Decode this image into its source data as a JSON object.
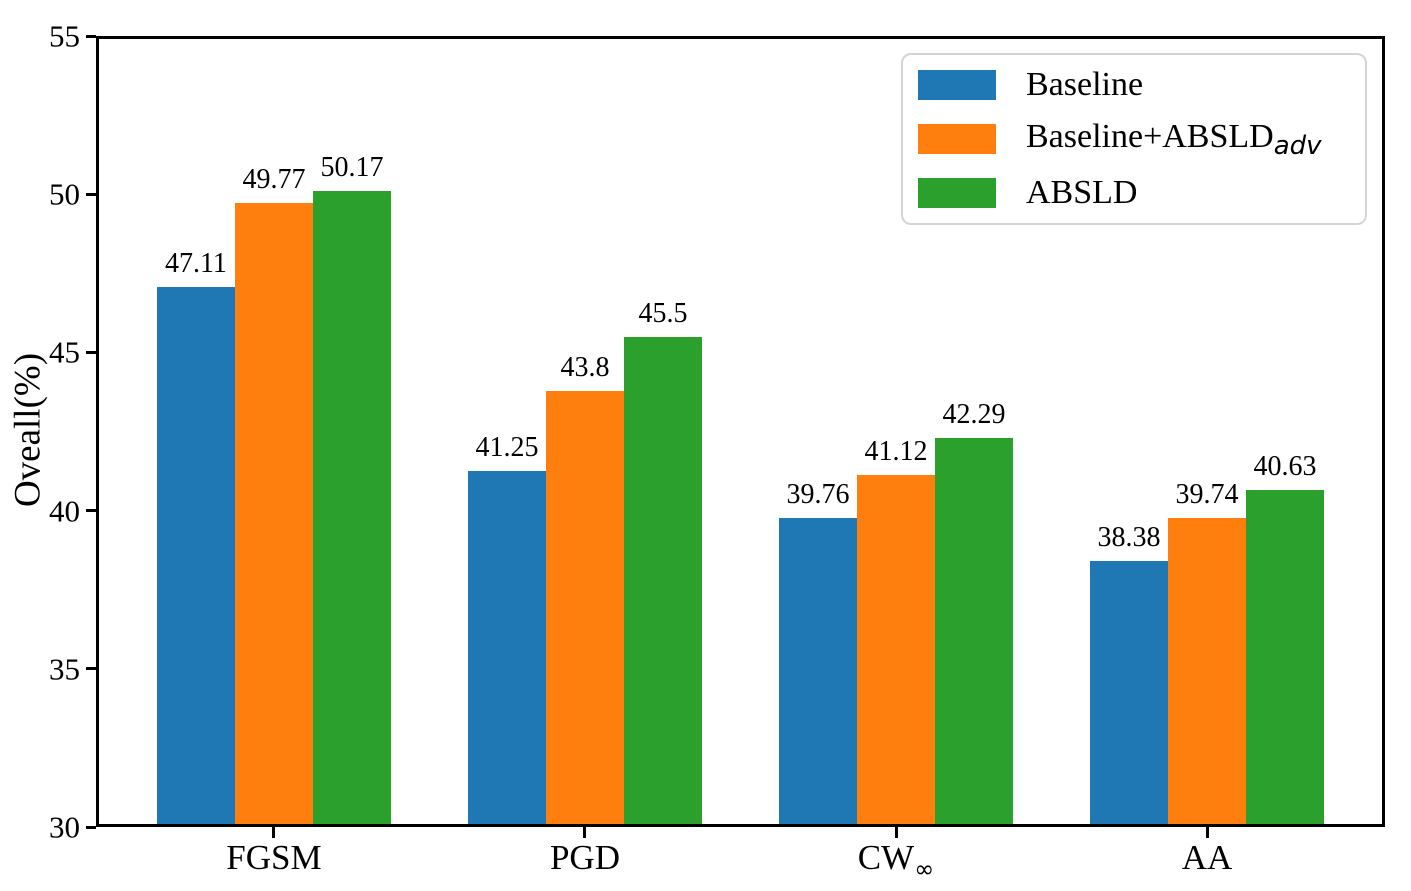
{
  "chart_data": {
    "type": "bar",
    "title": "",
    "xlabel": "",
    "ylabel": "Oveall(%)",
    "ylim": [
      30,
      55
    ],
    "yticks": [
      30,
      35,
      40,
      45,
      50,
      55
    ],
    "grid": false,
    "legend_position": "upper right",
    "background_color": "#ffffff",
    "axis_color": "#000000",
    "legend_border_color": "#d5d5d5",
    "categories": [
      {
        "text": "FGSM",
        "sub": ""
      },
      {
        "text": "PGD",
        "sub": ""
      },
      {
        "text": "CW",
        "sub": "∞"
      },
      {
        "text": "AA",
        "sub": ""
      }
    ],
    "series": [
      {
        "name": "Baseline",
        "name_sub": "",
        "color": "#1f77b4",
        "values": [
          47.11,
          41.25,
          39.76,
          38.38
        ],
        "value_labels": [
          "47.11",
          "41.25",
          "39.76",
          "38.38"
        ]
      },
      {
        "name": "Baseline+ABSLD",
        "name_sub": "adv",
        "color": "#ff7f0e",
        "values": [
          49.77,
          43.8,
          41.12,
          39.74
        ],
        "value_labels": [
          "49.77",
          "43.8",
          "41.12",
          "39.74"
        ]
      },
      {
        "name": "ABSLD",
        "name_sub": "",
        "color": "#2ca02c",
        "values": [
          50.17,
          45.5,
          42.29,
          40.63
        ],
        "value_labels": [
          "50.17",
          "45.5",
          "42.29",
          "40.63"
        ]
      }
    ]
  }
}
